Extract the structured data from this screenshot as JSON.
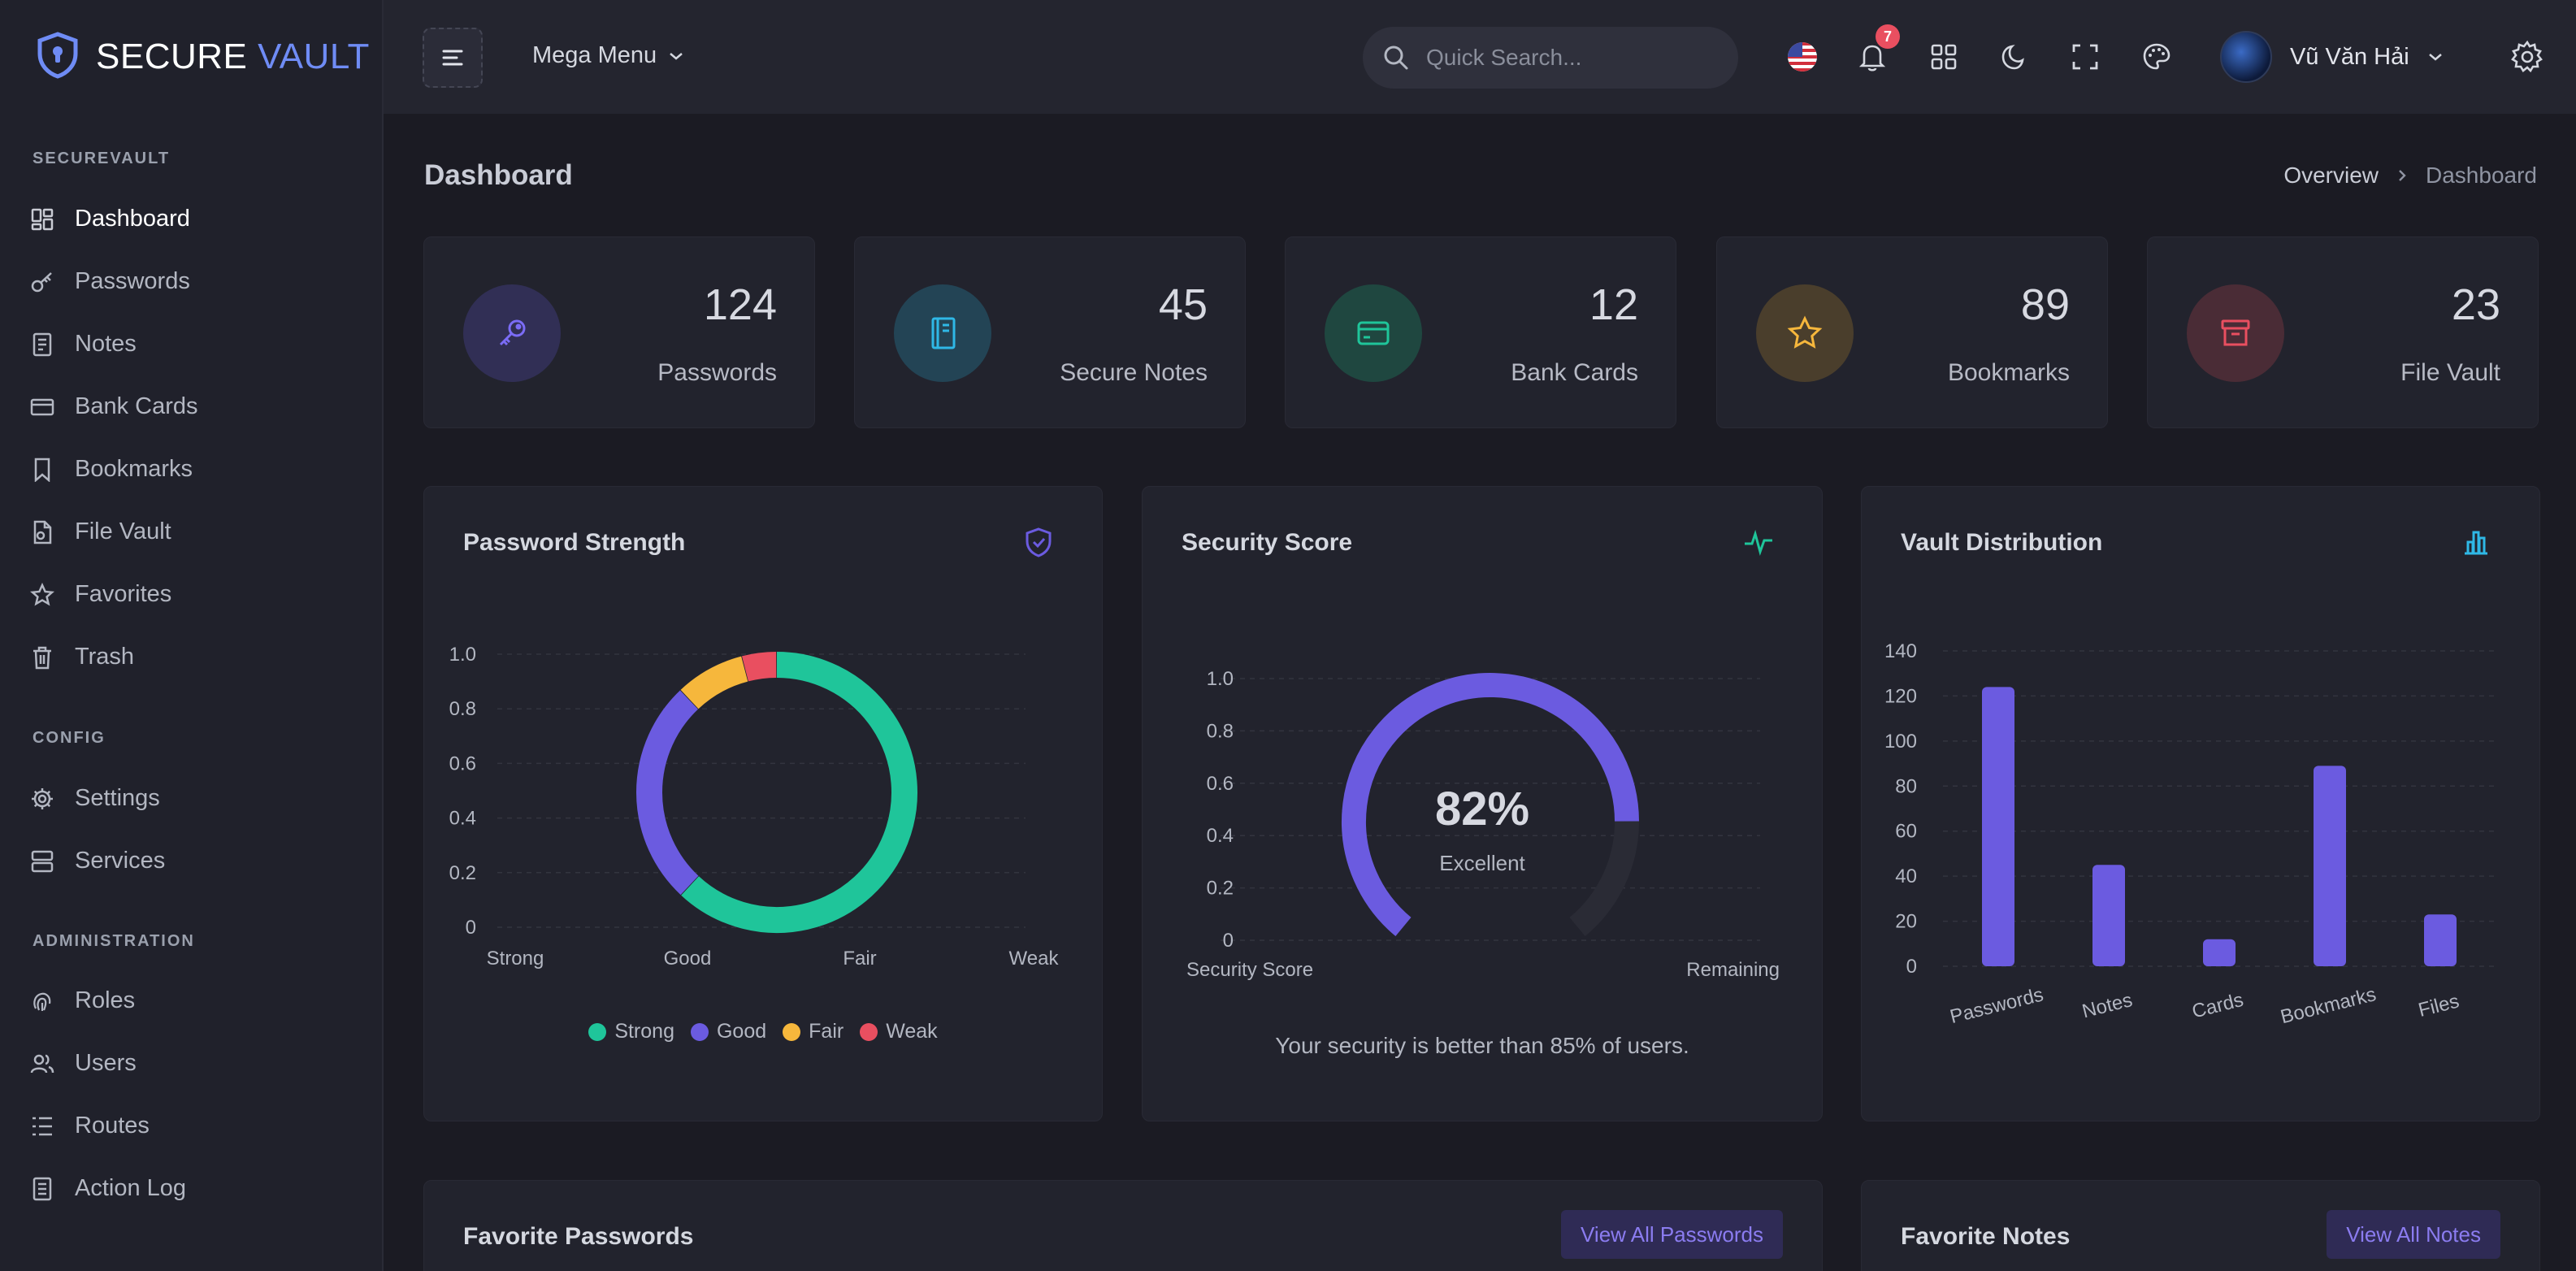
{
  "brand": {
    "name": "SECURE",
    "accent": "VAULT"
  },
  "sidebar": {
    "sections": [
      {
        "title": "SECUREVAULT",
        "items": [
          {
            "label": "Dashboard",
            "icon": "dashboard-icon",
            "active": true
          },
          {
            "label": "Passwords",
            "icon": "key-icon"
          },
          {
            "label": "Notes",
            "icon": "notes-icon"
          },
          {
            "label": "Bank Cards",
            "icon": "card-icon"
          },
          {
            "label": "Bookmarks",
            "icon": "bookmark-icon"
          },
          {
            "label": "File Vault",
            "icon": "file-icon"
          },
          {
            "label": "Favorites",
            "icon": "star-icon"
          },
          {
            "label": "Trash",
            "icon": "trash-icon"
          }
        ]
      },
      {
        "title": "CONFIG",
        "items": [
          {
            "label": "Settings",
            "icon": "gear-icon"
          },
          {
            "label": "Services",
            "icon": "server-icon"
          }
        ]
      },
      {
        "title": "ADMINISTRATION",
        "items": [
          {
            "label": "Roles",
            "icon": "fingerprint-icon"
          },
          {
            "label": "Users",
            "icon": "users-icon"
          },
          {
            "label": "Routes",
            "icon": "routes-icon"
          },
          {
            "label": "Action Log",
            "icon": "log-icon"
          }
        ]
      }
    ]
  },
  "topbar": {
    "mega_menu": "Mega Menu",
    "search_placeholder": "Quick Search...",
    "notification_count": "7",
    "user_name": "Vũ Văn Hải"
  },
  "page": {
    "title": "Dashboard",
    "breadcrumb": [
      "Overview",
      "Dashboard"
    ]
  },
  "stats": [
    {
      "value": "124",
      "label": "Passwords",
      "icon": "key-icon",
      "color": "#7b6cf6",
      "bg": "#312f55"
    },
    {
      "value": "45",
      "label": "Secure Notes",
      "icon": "notebook-icon",
      "color": "#2fb8e6",
      "bg": "#234455"
    },
    {
      "value": "12",
      "label": "Bank Cards",
      "icon": "card-icon",
      "color": "#1fc59a",
      "bg": "#1f4740"
    },
    {
      "value": "89",
      "label": "Bookmarks",
      "icon": "star-icon",
      "color": "#f6b73c",
      "bg": "#4a3e2c"
    },
    {
      "value": "23",
      "label": "File Vault",
      "icon": "archive-icon",
      "color": "#e94f60",
      "bg": "#4a2c36"
    }
  ],
  "cards": {
    "strength_title": "Password Strength",
    "score_title": "Security Score",
    "distribution_title": "Vault Distribution",
    "score_text": "Your security is better than 85% of users.",
    "fav_passwords_title": "Favorite Passwords",
    "fav_passwords_button": "View All Passwords",
    "fav_notes_title": "Favorite Notes",
    "fav_notes_button": "View All Notes"
  },
  "chart_data": [
    {
      "type": "pie",
      "title": "Password Strength",
      "categories": [
        "Strong",
        "Good",
        "Fair",
        "Weak"
      ],
      "values": [
        0.62,
        0.26,
        0.08,
        0.04
      ],
      "colors": [
        "#1fc59a",
        "#6b5be0",
        "#f6b73c",
        "#e94f60"
      ],
      "yticks": [
        "1.0",
        "0.8",
        "0.6",
        "0.4",
        "0.2",
        "0"
      ],
      "legend": "bottom"
    },
    {
      "type": "pie",
      "title": "Security Score",
      "categories": [
        "Security Score",
        "Remaining"
      ],
      "values": [
        82,
        18
      ],
      "center_value": "82%",
      "center_label": "Excellent",
      "colors": [
        "#6b5be0",
        "#2a2b35"
      ],
      "yticks": [
        "1.0",
        "0.8",
        "0.6",
        "0.4",
        "0.2",
        "0"
      ]
    },
    {
      "type": "bar",
      "title": "Vault Distribution",
      "categories": [
        "Passwords",
        "Notes",
        "Cards",
        "Bookmarks",
        "Files"
      ],
      "values": [
        124,
        45,
        12,
        89,
        23
      ],
      "ylim": [
        0,
        140
      ],
      "yticks": [
        "140",
        "120",
        "100",
        "80",
        "60",
        "40",
        "20",
        "0"
      ],
      "color": "#6b5be0"
    }
  ]
}
